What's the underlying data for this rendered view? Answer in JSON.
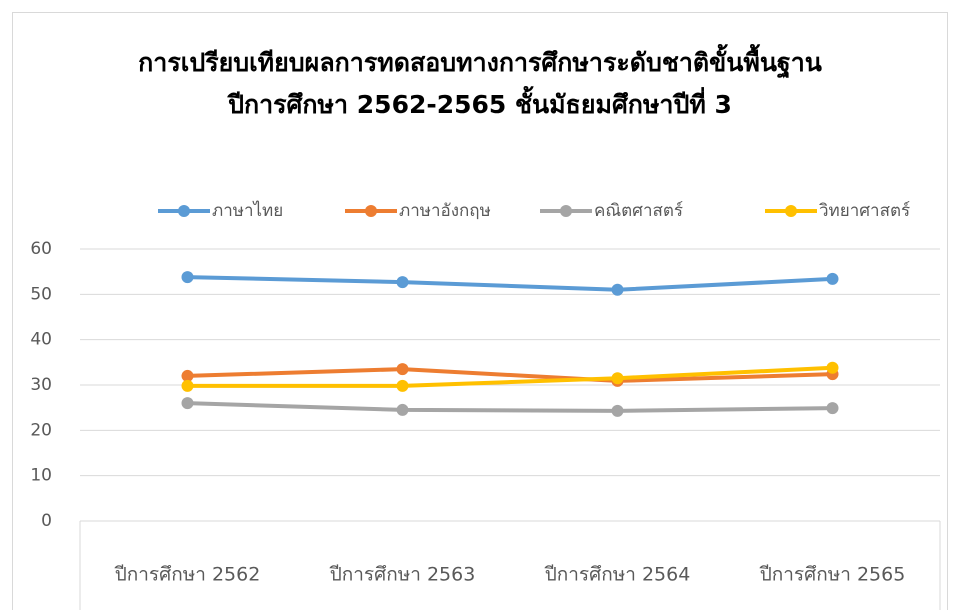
{
  "chart_data": {
    "type": "line",
    "title": [
      "การเปรียบเทียบผลการทดสอบทางการศึกษาระดับชาติขั้นพื้นฐาน",
      "ปีการศึกษา 2562-2565 ชั้นมัธยมศึกษาปีที่ 3"
    ],
    "categories": [
      "ปีการศึกษา 2562",
      "ปีการศึกษา 2563",
      "ปีการศึกษา 2564",
      "ปีการศึกษา 2565"
    ],
    "series": [
      {
        "name": "ภาษาไทย",
        "color": "#5b9bd5",
        "values": [
          53.8,
          52.7,
          51.0,
          53.4
        ]
      },
      {
        "name": "ภาษาอังกฤษ",
        "color": "#ed7d31",
        "values": [
          32.0,
          33.5,
          30.9,
          32.4
        ]
      },
      {
        "name": "คณิตศาสตร์",
        "color": "#a5a5a5",
        "values": [
          26.0,
          24.5,
          24.3,
          24.9
        ]
      },
      {
        "name": "วิทยาศาสตร์",
        "color": "#ffc000",
        "values": [
          29.8,
          29.8,
          31.5,
          33.8
        ]
      }
    ],
    "ylim": [
      0,
      60
    ],
    "yticks": [
      0,
      10,
      20,
      30,
      40,
      50,
      60
    ],
    "grid": true,
    "legend": "top"
  }
}
